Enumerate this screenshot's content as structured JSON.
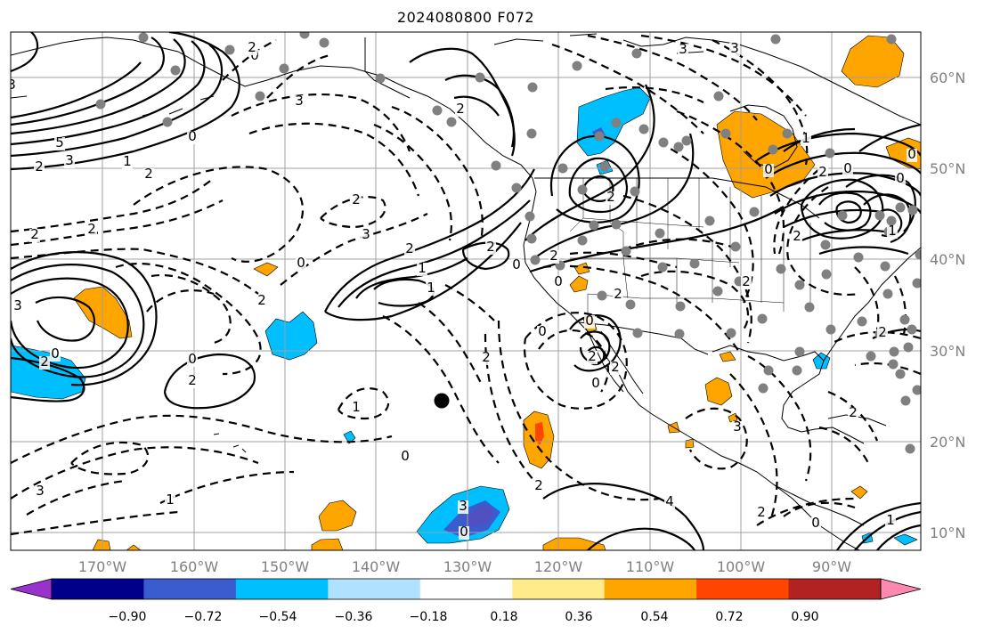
{
  "title": "2024080800 F072",
  "map": {
    "lon_labels": [
      "170°W",
      "160°W",
      "150°W",
      "140°W",
      "130°W",
      "120°W",
      "110°W",
      "100°W",
      "90°W"
    ],
    "lat_labels": [
      "60°N",
      "50°N",
      "40°N",
      "30°N",
      "20°N",
      "10°N"
    ],
    "marker_label": ""
  },
  "colorbar": {
    "colors": [
      "#9932cc",
      "#00008b",
      "#3a5ccf",
      "#00bfff",
      "#b0e2ff",
      "#ffffff",
      "#ffeb8a",
      "#ffa500",
      "#ff4500",
      "#b22222",
      "#ff88b0"
    ],
    "tick_labels": [
      "−0.90",
      "−0.72",
      "−0.54",
      "−0.36",
      "−0.18",
      "0.18",
      "0.36",
      "0.54",
      "0.72",
      "0.90"
    ]
  },
  "contour_labels": [
    "3",
    "5",
    "3",
    "2",
    "1",
    "0",
    "0",
    "3",
    "2",
    "2",
    "2",
    "0",
    "2",
    "3",
    "2",
    "2",
    "1",
    "1",
    "2",
    "0",
    "2",
    "2",
    "2",
    "3",
    "0",
    "1",
    "2",
    "0",
    "0",
    "2",
    "1",
    "2",
    "0",
    "0",
    "2",
    "2",
    "0",
    "0",
    "3",
    "2",
    "2",
    "1",
    "3",
    "0",
    "2",
    "0",
    "3",
    "1",
    "0",
    "0",
    "3",
    "4",
    "3",
    "2",
    "0",
    "2",
    "2",
    "1",
    "2",
    "2",
    "0",
    "2"
  ]
}
